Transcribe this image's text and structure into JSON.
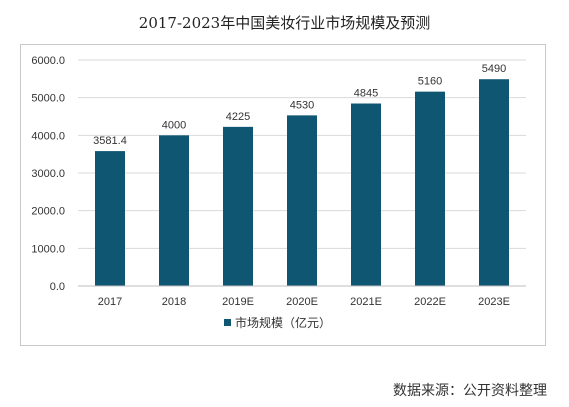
{
  "chart_data": {
    "type": "bar",
    "title": "2017-2023年中国美妆行业市场规模及预测",
    "categories": [
      "2017",
      "2018",
      "2019E",
      "2020E",
      "2021E",
      "2022E",
      "2023E"
    ],
    "series": [
      {
        "name": "市场规模（亿元）",
        "values": [
          3581.4,
          4000,
          4225,
          4530,
          4845,
          5160,
          5490
        ],
        "value_labels": [
          "3581.4",
          "4000",
          "4225",
          "4530",
          "4845",
          "5160",
          "5490"
        ],
        "color": "#0e5672"
      }
    ],
    "ylim": [
      0,
      6000
    ],
    "yticks": [
      0,
      1000,
      2000,
      3000,
      4000,
      5000,
      6000
    ],
    "ytick_labels": [
      "0.0",
      "1000.0",
      "2000.0",
      "3000.0",
      "4000.0",
      "5000.0",
      "6000.0"
    ],
    "xlabel": "",
    "ylabel": "",
    "grid": true,
    "legend_position": "bottom"
  },
  "source_note": "数据来源：公开资料整理"
}
